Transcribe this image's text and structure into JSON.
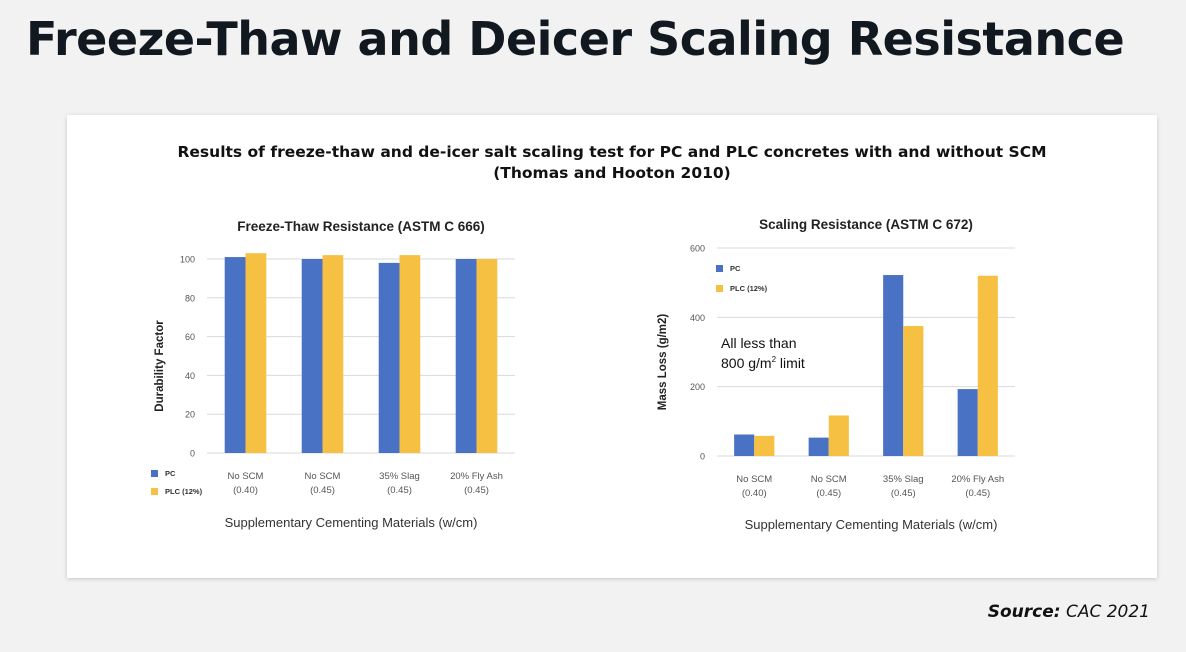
{
  "slide": {
    "title": "Freeze-Thaw and Deicer Scaling Resistance",
    "source_label": "Source:",
    "source_text": "CAC 2021"
  },
  "panel": {
    "title_line1": "Results of freeze-thaw and de-icer salt scaling test for PC and PLC concretes with and without SCM",
    "title_line2": "(Thomas and Hooton 2010)"
  },
  "colors": {
    "pc": "#4a72c4",
    "plc": "#f6c142",
    "grid": "#d9d9d9",
    "axis_text": "#555555"
  },
  "chart_data": [
    {
      "type": "bar",
      "title": "Freeze-Thaw Resistance (ASTM C 666)",
      "xlabel": "Supplementary Cementing Materials (w/cm)",
      "ylabel": "Durability Factor",
      "ylim": [
        0,
        100
      ],
      "yticks": [
        0,
        20,
        40,
        60,
        80,
        100
      ],
      "categories": [
        [
          "No SCM",
          "(0.40)"
        ],
        [
          "No SCM",
          "(0.45)"
        ],
        [
          "35% Slag",
          "(0.45)"
        ],
        [
          "20% Fly Ash",
          "(0.45)"
        ]
      ],
      "series": [
        {
          "name": "PC",
          "values": [
            101,
            100,
            98,
            100
          ]
        },
        {
          "name": "PLC (12%)",
          "values": [
            103,
            102,
            102,
            100
          ]
        }
      ],
      "legend": "bottom-left",
      "grid": true
    },
    {
      "type": "bar",
      "title": "Scaling Resistance (ASTM C 672)",
      "xlabel": "Supplementary Cementing Materials (w/cm)",
      "ylabel": "Mass Loss (g/m2)",
      "ylim": [
        0,
        600
      ],
      "yticks": [
        0,
        200,
        400,
        600
      ],
      "categories": [
        [
          "No SCM",
          "(0.40)"
        ],
        [
          "No SCM",
          "(0.45)"
        ],
        [
          "35% Slag",
          "(0.45)"
        ],
        [
          "20% Fly Ash",
          "(0.45)"
        ]
      ],
      "series": [
        {
          "name": "PC",
          "values": [
            62,
            53,
            522,
            193
          ]
        },
        {
          "name": "PLC (12%)",
          "values": [
            58,
            117,
            375,
            520
          ]
        }
      ],
      "legend": "top-left",
      "grid": true,
      "annotation": {
        "line1": "All less than",
        "line2_pre": "800 g/m",
        "line2_sup": "2",
        "line2_post": " limit"
      }
    }
  ]
}
